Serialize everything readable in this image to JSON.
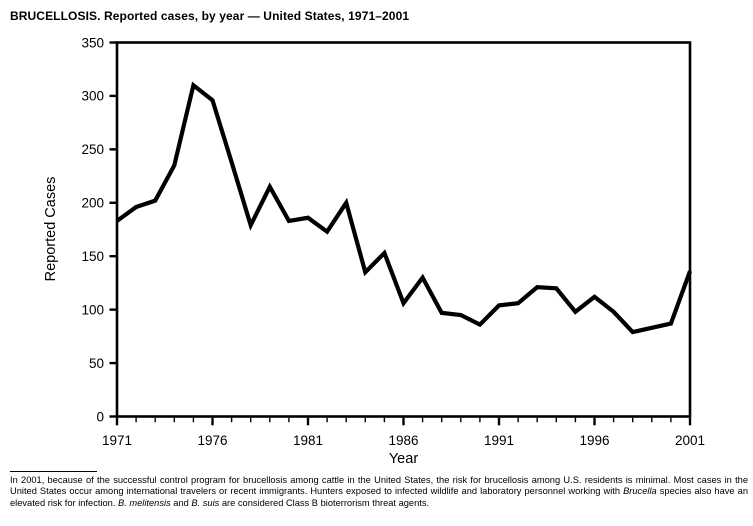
{
  "title": "BRUCELLOSIS. Reported cases, by year — United States, 1971–2001",
  "chart_data": {
    "type": "line",
    "title": "BRUCELLOSIS. Reported cases, by year — United States, 1971–2001",
    "xlabel": "Year",
    "ylabel": "Reported Cases",
    "x": [
      1971,
      1972,
      1973,
      1974,
      1975,
      1976,
      1977,
      1978,
      1979,
      1980,
      1981,
      1982,
      1983,
      1984,
      1985,
      1986,
      1987,
      1988,
      1989,
      1990,
      1991,
      1992,
      1993,
      1994,
      1995,
      1996,
      1997,
      1998,
      1999,
      2000,
      2001
    ],
    "values": [
      183,
      196,
      202,
      235,
      310,
      296,
      238,
      179,
      215,
      183,
      186,
      173,
      200,
      135,
      153,
      106,
      130,
      97,
      95,
      86,
      104,
      106,
      121,
      120,
      98,
      112,
      98,
      79,
      83,
      87,
      136
    ],
    "series_name": "Reported cases",
    "xlim": [
      1971,
      2001
    ],
    "ylim": [
      0,
      350
    ],
    "y_ticks": [
      0,
      50,
      100,
      150,
      200,
      250,
      300,
      350
    ],
    "x_ticks": [
      1971,
      1976,
      1981,
      1986,
      1991,
      1996,
      2001
    ],
    "grid": false,
    "legend": false,
    "line_color": "#000000",
    "background_color": "#ffffff"
  },
  "footnote": {
    "segments": [
      {
        "text": "In 2001, because of the successful control program for brucellosis among cattle in the United States, the risk for brucellosis among U.S. residents is minimal. Most cases in the United States occur among international travelers or recent immigrants. Hunters exposed to infected wildlife and laboratory personnel working with ",
        "italic": false
      },
      {
        "text": "Brucella",
        "italic": true
      },
      {
        "text": " species also have an elevated risk for infection. ",
        "italic": false
      },
      {
        "text": "B. melitensis",
        "italic": true
      },
      {
        "text": " and ",
        "italic": false
      },
      {
        "text": "B. suis",
        "italic": true
      },
      {
        "text": " are considered Class B bioterrorism threat agents.",
        "italic": false
      }
    ]
  },
  "colors": {
    "line": "#000000",
    "text": "#000000",
    "background": "#ffffff"
  }
}
